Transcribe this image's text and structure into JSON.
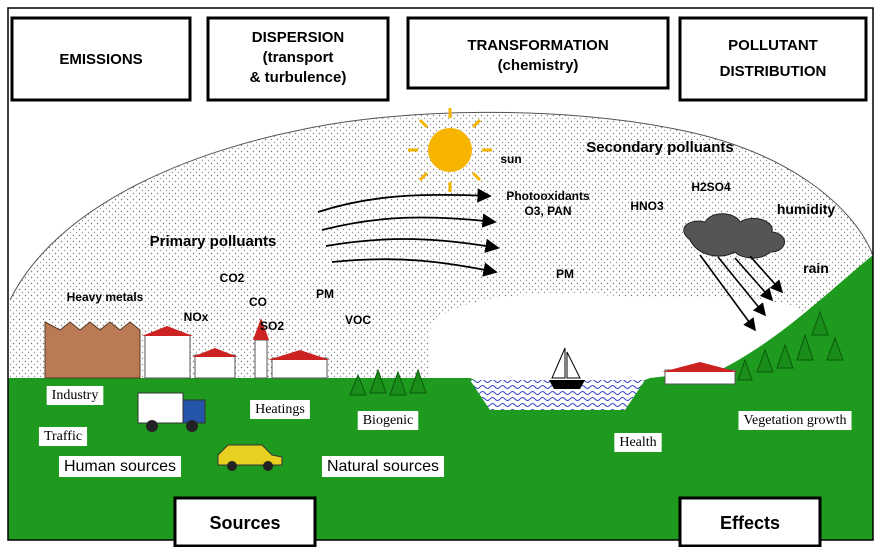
{
  "header_boxes": [
    {
      "lines": [
        "EMISSIONS"
      ]
    },
    {
      "lines": [
        "DISPERSION",
        "(transport",
        "& turbulence)"
      ]
    },
    {
      "lines": [
        "TRANSFORMATION",
        "(chemistry)"
      ]
    },
    {
      "lines": [
        "POLLUTANT",
        "DISTRIBUTION"
      ]
    }
  ],
  "atmosphere_labels": [
    "sun",
    "Secondary polluants",
    "Photooxidants",
    "O3, PAN",
    "HNO3",
    "H2SO4",
    "humidity",
    "rain",
    "Primary polluants",
    "CO2",
    "Heavy metals",
    "CO",
    "PM",
    "NOx",
    "SO2",
    "VOC",
    "PM"
  ],
  "ground_labels": [
    "Industry",
    "Traffic",
    "Human sources",
    "Heatings",
    "Biogenic",
    "Natural sources",
    "Health",
    "Vegetation growth"
  ],
  "bottom_boxes": [
    "Sources",
    "Effects"
  ]
}
